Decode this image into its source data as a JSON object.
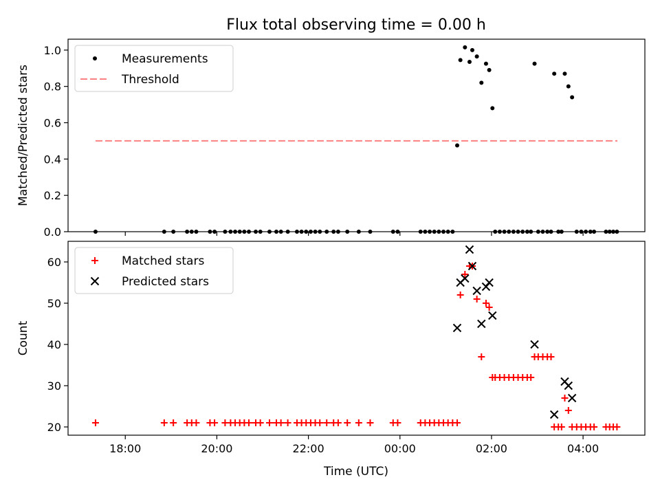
{
  "chart_data": {
    "title": "Flux total observing time = 0.00 h",
    "xlabel": "Time (UTC)",
    "x_unit": "hours since 00:00 UTC",
    "xlim": [
      -7.25,
      5.35
    ],
    "xticks": [
      {
        "value": -6,
        "label": "18:00"
      },
      {
        "value": -4,
        "label": "20:00"
      },
      {
        "value": -2,
        "label": "22:00"
      },
      {
        "value": 0,
        "label": "00:00"
      },
      {
        "value": 2,
        "label": "02:00"
      },
      {
        "value": 4,
        "label": "04:00"
      }
    ],
    "panels": [
      {
        "type": "scatter",
        "ylabel": "Matched/Predicted stars",
        "ylim": [
          0,
          1.06
        ],
        "yticks": [
          "0.0",
          "0.2",
          "0.4",
          "0.6",
          "0.8",
          "1.0"
        ],
        "ytick_values": [
          0,
          0.2,
          0.4,
          0.6,
          0.8,
          1.0
        ],
        "legend": "top-left",
        "series": [
          {
            "name": "Measurements",
            "marker": "dot",
            "color": "#000000",
            "x": [
              -6.65,
              -5.15,
              -4.95,
              -4.65,
              -4.55,
              -4.45,
              -4.15,
              -4.05,
              -3.82,
              -3.7,
              -3.6,
              -3.5,
              -3.4,
              -3.3,
              -3.15,
              -3.05,
              -2.85,
              -2.7,
              -2.6,
              -2.45,
              -2.25,
              -2.15,
              -2.05,
              -1.95,
              -1.85,
              -1.75,
              -1.6,
              -1.45,
              -1.35,
              -1.15,
              -0.9,
              -0.65,
              -0.15,
              -0.05,
              0.45,
              0.55,
              0.65,
              0.75,
              0.85,
              0.95,
              1.05,
              1.15,
              1.25,
              1.32,
              1.42,
              1.52,
              1.58,
              1.68,
              1.78,
              1.88,
              1.95,
              2.02,
              2.08,
              2.18,
              2.28,
              2.38,
              2.48,
              2.58,
              2.68,
              2.78,
              2.86,
              2.94,
              3.02,
              3.12,
              3.22,
              3.3,
              3.37,
              3.46,
              3.53,
              3.6,
              3.68,
              3.76,
              3.86,
              3.96,
              4.06,
              4.16,
              4.24,
              4.5,
              4.58,
              4.66,
              4.74
            ],
            "y": [
              0,
              0,
              0,
              0,
              0,
              0,
              0,
              0,
              0,
              0,
              0,
              0,
              0,
              0,
              0,
              0,
              0,
              0,
              0,
              0,
              0,
              0,
              0,
              0,
              0,
              0,
              0,
              0,
              0,
              0,
              0,
              0,
              0,
              0,
              0,
              0,
              0,
              0,
              0,
              0,
              0,
              0,
              0.475,
              0.945,
              1.015,
              0.935,
              1.0,
              0.965,
              0.82,
              0.925,
              0.89,
              0.68,
              0,
              0,
              0,
              0,
              0,
              0,
              0,
              0,
              0,
              0.925,
              0,
              0,
              0,
              0,
              0.87,
              0,
              0,
              0.87,
              0.8,
              0.74,
              0,
              0,
              0,
              0,
              0,
              0,
              0,
              0,
              0
            ]
          },
          {
            "name": "Threshold",
            "type": "line",
            "style": "dashed",
            "color": "#ff8080",
            "x": [
              -6.65,
              4.75
            ],
            "y": [
              0.5,
              0.5
            ]
          }
        ]
      },
      {
        "type": "scatter",
        "ylabel": "Count",
        "ylim": [
          18,
          65
        ],
        "yticks": [
          "20",
          "30",
          "40",
          "50",
          "60"
        ],
        "ytick_values": [
          20,
          30,
          40,
          50,
          60
        ],
        "legend": "top-left",
        "series": [
          {
            "name": "Matched stars",
            "marker": "plus",
            "color": "#ff0000",
            "x": [
              -6.65,
              -5.15,
              -4.95,
              -4.65,
              -4.55,
              -4.45,
              -4.15,
              -4.05,
              -3.82,
              -3.7,
              -3.6,
              -3.5,
              -3.4,
              -3.3,
              -3.15,
              -3.05,
              -2.85,
              -2.7,
              -2.6,
              -2.45,
              -2.25,
              -2.15,
              -2.05,
              -1.95,
              -1.85,
              -1.75,
              -1.6,
              -1.45,
              -1.35,
              -1.15,
              -0.9,
              -0.65,
              -0.15,
              -0.05,
              0.45,
              0.55,
              0.65,
              0.75,
              0.85,
              0.95,
              1.05,
              1.15,
              1.25,
              1.32,
              1.42,
              1.52,
              1.58,
              1.68,
              1.78,
              1.88,
              1.95,
              2.02,
              2.08,
              2.18,
              2.28,
              2.38,
              2.48,
              2.58,
              2.68,
              2.78,
              2.86,
              2.94,
              3.02,
              3.12,
              3.22,
              3.3,
              3.37,
              3.46,
              3.53,
              3.6,
              3.68,
              3.76,
              3.86,
              3.96,
              4.06,
              4.16,
              4.24,
              4.5,
              4.58,
              4.66,
              4.74
            ],
            "y": [
              21,
              21,
              21,
              21,
              21,
              21,
              21,
              21,
              21,
              21,
              21,
              21,
              21,
              21,
              21,
              21,
              21,
              21,
              21,
              21,
              21,
              21,
              21,
              21,
              21,
              21,
              21,
              21,
              21,
              21,
              21,
              21,
              21,
              21,
              21,
              21,
              21,
              21,
              21,
              21,
              21,
              21,
              21,
              52,
              57,
              59,
              59,
              51,
              37,
              50,
              49,
              32,
              32,
              32,
              32,
              32,
              32,
              32,
              32,
              32,
              32,
              37,
              37,
              37,
              37,
              37,
              20,
              20,
              20,
              27,
              24,
              20,
              20,
              20,
              20,
              20,
              20,
              20,
              20,
              20,
              20
            ]
          },
          {
            "name": "Predicted stars",
            "marker": "x",
            "color": "#000000",
            "x": [
              1.25,
              1.32,
              1.42,
              1.52,
              1.58,
              1.68,
              1.78,
              1.88,
              1.95,
              2.02,
              2.94,
              3.37,
              3.6,
              3.68,
              3.76
            ],
            "y": [
              44,
              55,
              56,
              63,
              59,
              53,
              45,
              54,
              55,
              47,
              40,
              23,
              31,
              30,
              27
            ]
          }
        ]
      }
    ]
  }
}
